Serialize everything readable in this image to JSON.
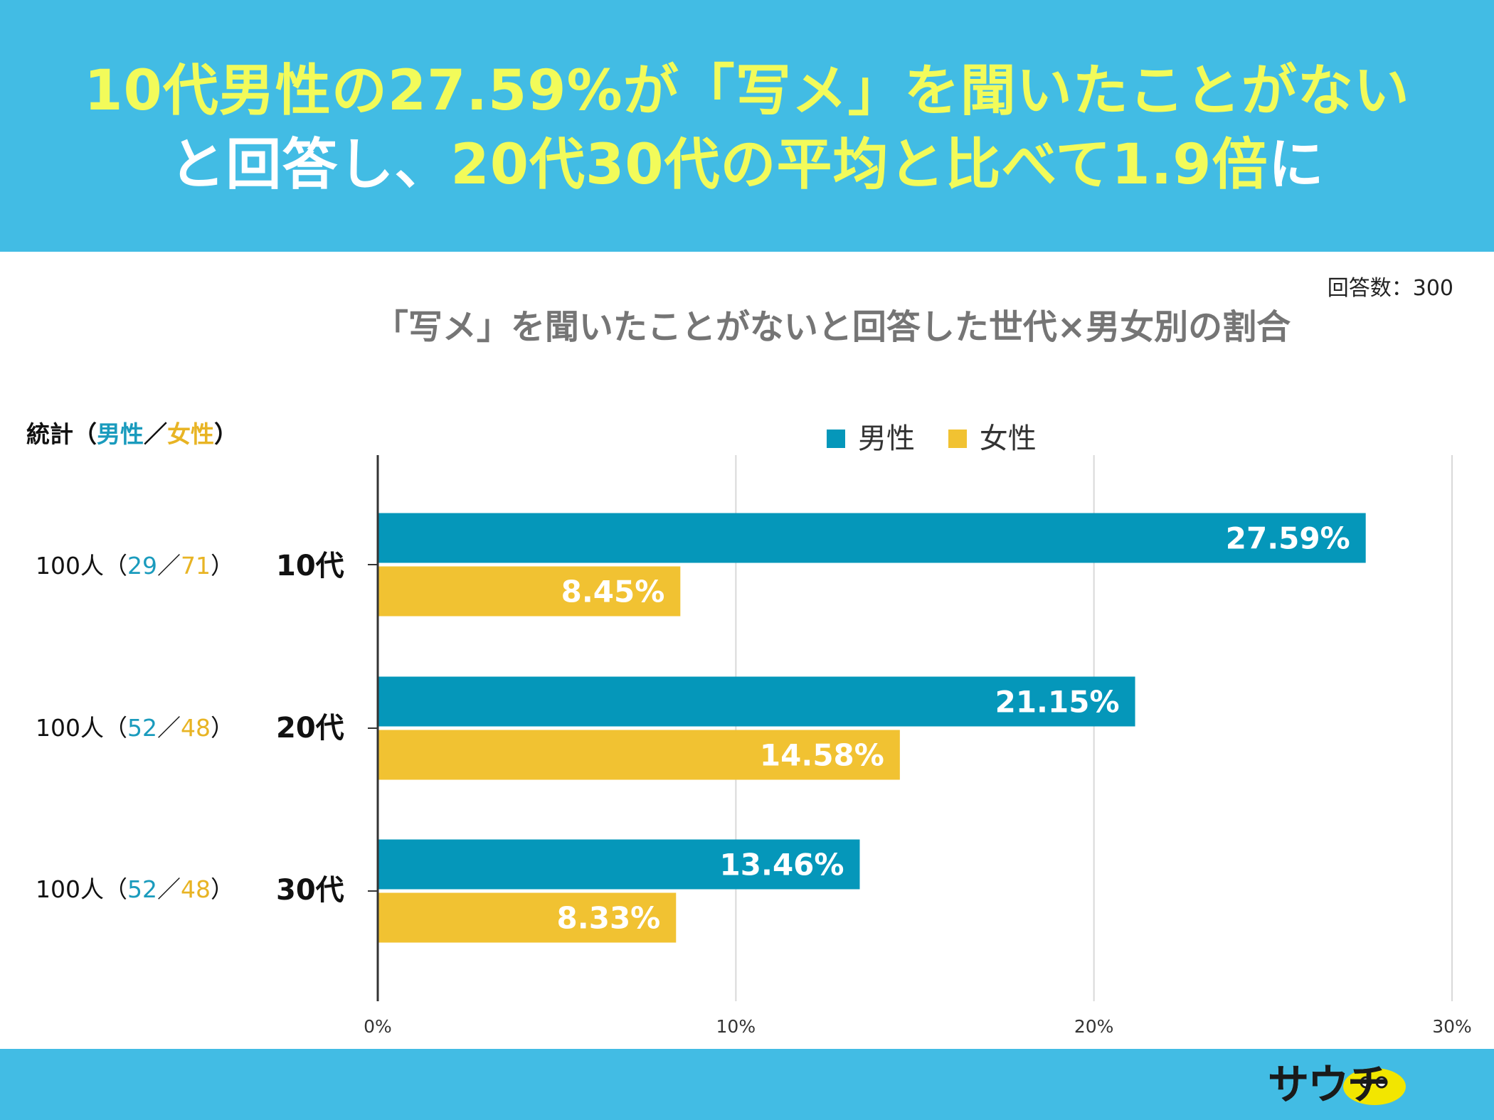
{
  "header": {
    "line1": "10代男性の27.59%が「写メ」を聞いたことがない",
    "line2_white1": "と回答し、",
    "line2_yellow": "20代30代の平均と比べて1.9倍",
    "line2_white2": "に"
  },
  "response_count": "回答数：300",
  "stats_label": {
    "prefix": "統計（",
    "male": "男性",
    "sep": "／",
    "female": "女性",
    "suffix": "）"
  },
  "rows": [
    {
      "total": "100人（",
      "male_n": "29",
      "sep": "／",
      "female_n": "71",
      "close": "）",
      "age": "10代"
    },
    {
      "total": "100人（",
      "male_n": "52",
      "sep": "／",
      "female_n": "48",
      "close": "）",
      "age": "20代"
    },
    {
      "total": "100人（",
      "male_n": "52",
      "sep": "／",
      "female_n": "48",
      "close": "）",
      "age": "30代"
    }
  ],
  "colors": {
    "male": "#0597ba",
    "female": "#f1c232",
    "grid": "#d9d9d9",
    "axis": "#333333",
    "banner": "#42bce4"
  },
  "logo_text": "サウチ",
  "chart_data": {
    "type": "bar",
    "orientation": "horizontal",
    "title": "「写メ」を聞いたことがないと回答した世代×男女別の割合",
    "categories": [
      "10代",
      "20代",
      "30代"
    ],
    "series": [
      {
        "name": "男性",
        "values": [
          27.59,
          21.15,
          13.46
        ],
        "labels": [
          "27.59%",
          "21.15%",
          "13.46%"
        ]
      },
      {
        "name": "女性",
        "values": [
          8.45,
          14.58,
          8.33
        ],
        "labels": [
          "8.45%",
          "14.58%",
          "8.33%"
        ]
      }
    ],
    "xlim": [
      0,
      30
    ],
    "xticks": [
      0,
      10,
      20,
      30
    ],
    "xtick_labels": [
      "0%",
      "10%",
      "20%",
      "30%"
    ],
    "legend": "top",
    "grid": true
  }
}
